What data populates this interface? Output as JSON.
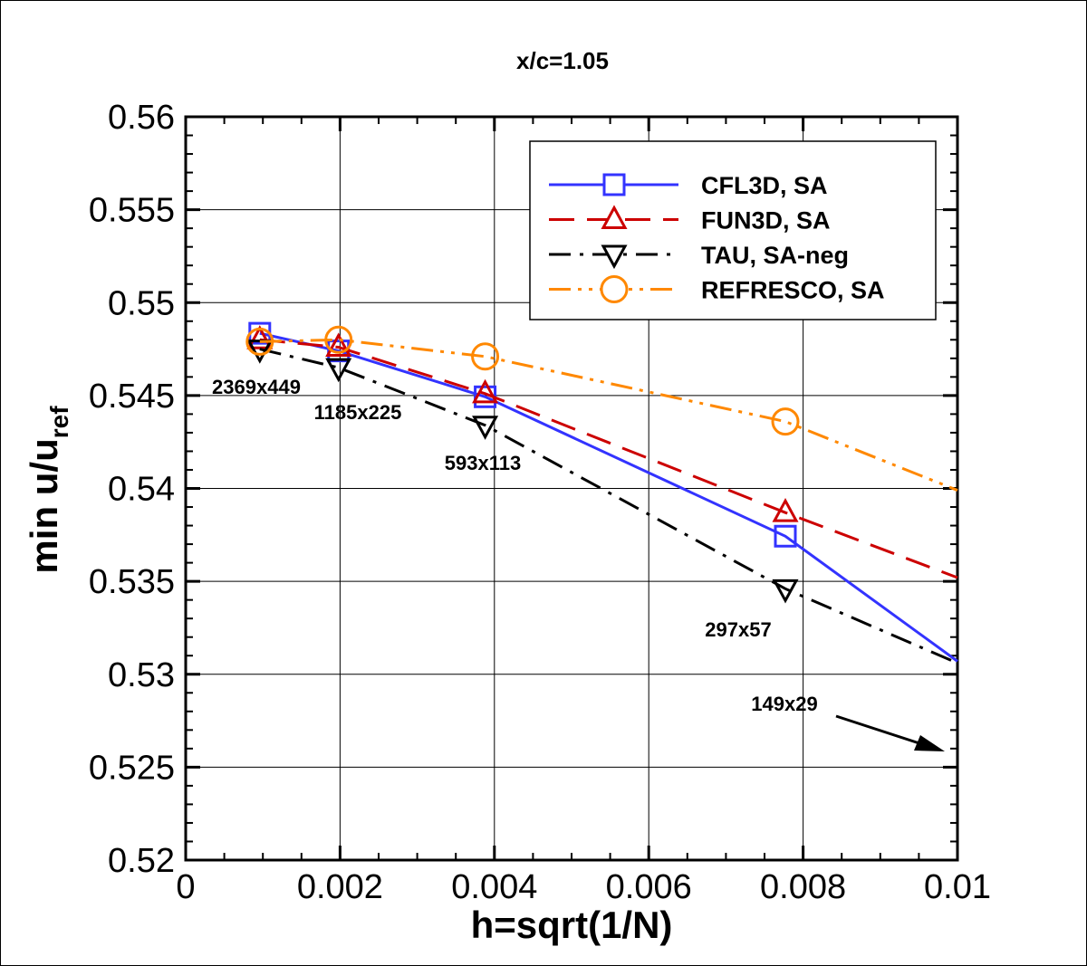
{
  "chart_data": {
    "type": "line",
    "title": "x/c=1.05",
    "xlabel": "h=sqrt(1/N)",
    "ylabel": "min u/u",
    "ylabel_sub": "ref",
    "xlim": [
      0,
      0.01
    ],
    "ylim": [
      0.52,
      0.56
    ],
    "xticks": [
      "0",
      "0.002",
      "0.004",
      "0.006",
      "0.008",
      "0.01"
    ],
    "yticks": [
      "0.52",
      "0.525",
      "0.53",
      "0.535",
      "0.54",
      "0.545",
      "0.55",
      "0.555",
      "0.56"
    ],
    "grid": true,
    "legend_position": "top-right",
    "x": [
      0.00096,
      0.00198,
      0.00388,
      0.00777,
      0.01
    ],
    "series": [
      {
        "name": "CFL3D, SA",
        "color": "#3333ff",
        "dash": "solid",
        "marker": "square",
        "values": [
          0.54835,
          0.5474,
          0.54493,
          0.53743,
          0.5307
        ]
      },
      {
        "name": "FUN3D, SA",
        "color": "#cc0000",
        "dash": "dash",
        "marker": "triangle-up",
        "values": [
          0.548,
          0.5476,
          0.5451,
          0.5387,
          0.5352
        ]
      },
      {
        "name": "TAU, SA-neg",
        "color": "#000000",
        "dash": "dashdot",
        "marker": "triangle-down",
        "values": [
          0.5475,
          0.5465,
          0.5434,
          0.5346,
          0.5306
        ]
      },
      {
        "name": "REFRESCO, SA",
        "color": "#ff8800",
        "dash": "dashdotdot",
        "marker": "circle",
        "values": [
          0.5479,
          0.548,
          0.5471,
          0.5436,
          0.5399
        ]
      }
    ],
    "annotations": [
      {
        "text": "2369x449",
        "x": 0.00096
      },
      {
        "text": "1185x225",
        "x": 0.00198
      },
      {
        "text": "593x113",
        "x": 0.00388
      },
      {
        "text": "297x57",
        "x": 0.00777
      },
      {
        "text": "149x29",
        "x": 0.01,
        "arrow": true
      }
    ]
  }
}
